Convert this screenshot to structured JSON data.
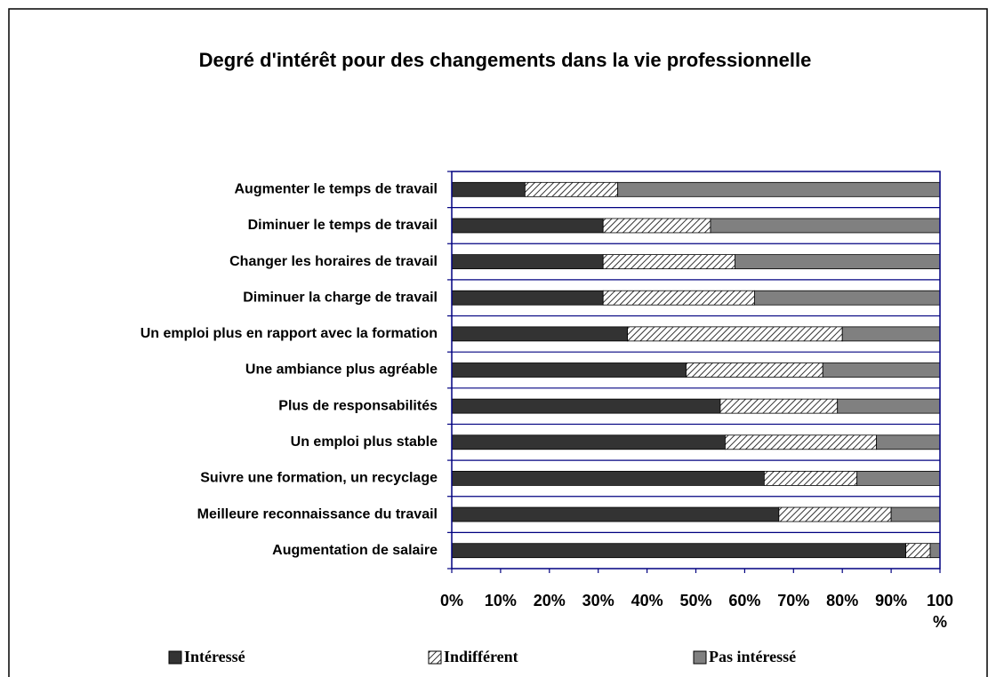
{
  "chart_data": {
    "type": "stacked-barh",
    "title": "Degré d'intérêt pour des changements dans la vie professionnelle",
    "categories": [
      "Augmenter le temps de travail",
      "Diminuer le temps de travail",
      "Changer les horaires de travail",
      "Diminuer la charge de travail",
      "Un emploi plus en rapport avec la formation",
      "Une ambiance plus agréable",
      "Plus de responsabilités",
      "Un emploi plus stable",
      "Suivre une formation, un recyclage",
      "Meilleure reconnaissance du travail",
      "Augmentation de salaire"
    ],
    "series": [
      {
        "name": "Intéressé",
        "color": "#333333",
        "values": [
          15,
          31,
          31,
          31,
          36,
          48,
          55,
          56,
          64,
          67,
          93
        ]
      },
      {
        "name": "Indifférent",
        "color": "#ffffff",
        "pattern": "diagonal",
        "values": [
          19,
          22,
          27,
          31,
          44,
          28,
          24,
          31,
          19,
          23,
          5
        ]
      },
      {
        "name": "Pas intéressé",
        "color": "#808080",
        "values": [
          66,
          47,
          42,
          38,
          20,
          24,
          21,
          13,
          17,
          10,
          2
        ]
      }
    ],
    "xlim": [
      0,
      100
    ],
    "xticks": [
      {
        "value": 0,
        "label": "0%"
      },
      {
        "value": 10,
        "label": "10%"
      },
      {
        "value": 20,
        "label": "20%"
      },
      {
        "value": 30,
        "label": "30%"
      },
      {
        "value": 40,
        "label": "40%"
      },
      {
        "value": 50,
        "label": "50%"
      },
      {
        "value": 60,
        "label": "60%"
      },
      {
        "value": 70,
        "label": "70%"
      },
      {
        "value": 80,
        "label": "80%"
      },
      {
        "value": 90,
        "label": "90%"
      },
      {
        "value": 100,
        "label": "100 %"
      }
    ],
    "legend": "bottom"
  }
}
